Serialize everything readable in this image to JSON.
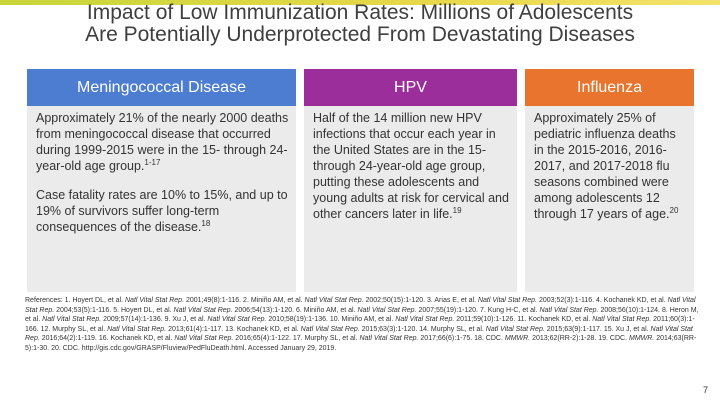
{
  "title": {
    "line1": "Impact of Low Immunization Rates: Millions of Adolescents",
    "line2": "Are Potentially Underprotected From Devastating Diseases"
  },
  "colors": {
    "meningococcal": "#4d7dd0",
    "hpv": "#9b2e9b",
    "influenza": "#e8742d",
    "body_bg": "#ebebeb",
    "accent": "#c7d63a"
  },
  "columns": {
    "meningococcal": {
      "header": "Meningococcal Disease",
      "p1": "Approximately 21% of the nearly 2000 deaths from meningococcal disease that occurred during 1999-2015 were in the 15- through 24-year-old age group.",
      "p1_sup": "1-17",
      "p2": "Case fatality rates are 10% to 15%, and up to 19% of survivors suffer long-term consequences of the disease.",
      "p2_sup": "18"
    },
    "hpv": {
      "header": "HPV",
      "p1": "Half of the 14 million new HPV infections that occur each year in the United States are in the 15- through 24-year-old age group, putting these adolescents and young adults at risk for cervical and other cancers later in life.",
      "p1_sup": "19"
    },
    "influenza": {
      "header": "Influenza",
      "p1": "Approximately 25% of pediatric influenza deaths in the 2015-2016, 2016-2017, and 2017-2018 flu seasons combined were among adolescents 12 through 17 years of age.",
      "p1_sup": "20"
    }
  },
  "references": {
    "r1": "References: 1. Hoyert DL, et al.",
    "r1j": "Natl Vital Stat Rep.",
    "r1b": "2001;49(8):1-116. 2. Miniño AM, et al.",
    "r2j": "Natl Vital Stat Rep.",
    "r2b": "2002;50(15):1-120. 3. Arias E, et al.",
    "r3j": "Natl Vital Stat Rep.",
    "r3b": "2003;52(3):1-116. 4. Kochanek KD, et al.",
    "r4j": "Natl Vital Stat Rep.",
    "r4b": "2004;53(5):1-116. 5. Hoyert DL, et al.",
    "r5j": "Natl Vital Stat Rep.",
    "r5b": "2006;54(13):1-120. 6. Miniño AM, et al.",
    "r6j": "Natl Vital Stat Rep.",
    "r6b": "2007;55(19):1-120. 7. Kung H-C, et al.",
    "r7j": "Natl Vital Stat Rep.",
    "r7b": "2008;56(10):1-124. 8. Heron M, et al.",
    "r8j": "Natl Vital Stat Rep.",
    "r8b": "2009;57(14):1-136. 9. Xu J, et al.",
    "r9j": "Natl Vital Stat Rep.",
    "r9b": "2010;58(19):1-136. 10. Miniño AM, et al.",
    "r10j": "Natl Vital Stat Rep.",
    "r10b": "2011;59(10):1-126. 11. Kochanek KD, et al.",
    "r11j": "Natl Vital Stat Rep.",
    "r11b": "2011;60(3):1-166. 12. Murphy SL, et al.",
    "r12j": "Natl Vital Stat Rep.",
    "r12b": "2013;61(4):1-117. 13. Kochanek KD, et al.",
    "r13j": "Natl Vital Stat Rep.",
    "r13b": "2015;63(3):1-120. 14. Murphy SL, et al.",
    "r14j": "Natl Vital Stat Rep.",
    "r14b": "2015;63(9):1-117. 15. Xu J, et al.",
    "r15j": "Natl Vital Stat Rep.",
    "r15b": "2016;64(2):1-119. 16. Kochanek KD, et al.",
    "r16j": "Natl Vital Stat Rep.",
    "r16b": "2016;65(4):1-122. 17. Murphy SL, et al.",
    "r17j": "Natl Vital Stat Rep.",
    "r17b": "2017;66(6):1-75. 18. CDC.",
    "r18j": "MMWR.",
    "r18b": "2013;62(RR-2):1-28. 19. CDC.",
    "r19j": "MMWR.",
    "r19b": "2014;63(RR-5):1-30. 20. CDC. http://gis.cdc.gov/GRASP/Fluview/PedFluDeath.html. Accessed January 29, 2019."
  },
  "page_number": "7"
}
